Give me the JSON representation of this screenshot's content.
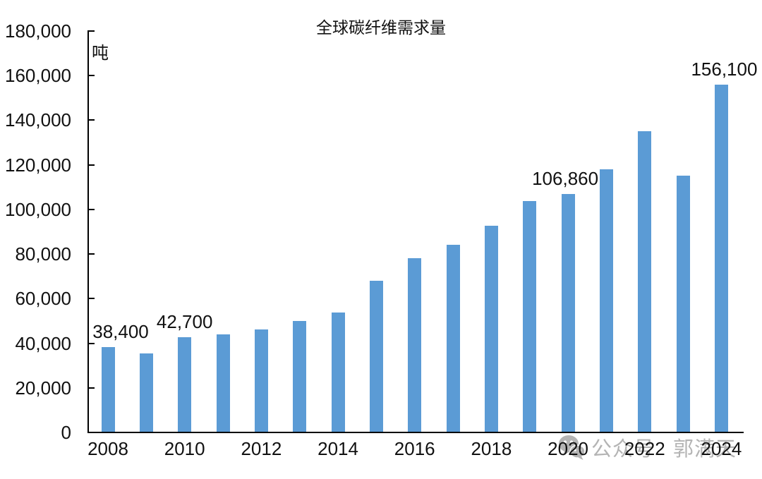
{
  "chart_data": {
    "type": "bar",
    "title": "全球碳纤维需求量",
    "ylabel": "吨",
    "xlabel": "",
    "categories": [
      "2008",
      "2009",
      "2010",
      "2011",
      "2012",
      "2013",
      "2014",
      "2015",
      "2016",
      "2017",
      "2018",
      "2019",
      "2020",
      "2021",
      "2022",
      "2023",
      "2024"
    ],
    "values": [
      38400,
      35400,
      42700,
      44100,
      46300,
      50100,
      53700,
      68000,
      78100,
      84200,
      92600,
      103700,
      106860,
      118000,
      135000,
      115000,
      156100
    ],
    "ylim": [
      0,
      180000
    ],
    "ytick_values": [
      0,
      20000,
      40000,
      60000,
      80000,
      100000,
      120000,
      140000,
      160000,
      180000
    ],
    "ytick_labels": [
      "0",
      "20,000",
      "40,000",
      "60,000",
      "80,000",
      "100,000",
      "120,000",
      "140,000",
      "160,000",
      "180,000"
    ],
    "xtick_labels": [
      "2008",
      "2010",
      "2012",
      "2014",
      "2016",
      "2018",
      "2020",
      "2022",
      "2024"
    ],
    "data_labels": [
      {
        "category": "2008",
        "text": "38,400",
        "dx": 18
      },
      {
        "category": "2010",
        "text": "42,700",
        "dx": 0
      },
      {
        "category": "2020",
        "text": "106,860",
        "dx": -4
      },
      {
        "category": "2024",
        "text": "156,100",
        "dx": 4
      }
    ],
    "grid": false,
    "legend": false,
    "bar_color": "#5B9BD5"
  },
  "colors": {
    "bar": "#5B9BD5",
    "axis": "#000000",
    "text": "#111111",
    "watermark": "#b4b4b4"
  },
  "watermark": {
    "icon": "wechat-icon",
    "label_left": "公众号",
    "label_right": "郭满天"
  }
}
